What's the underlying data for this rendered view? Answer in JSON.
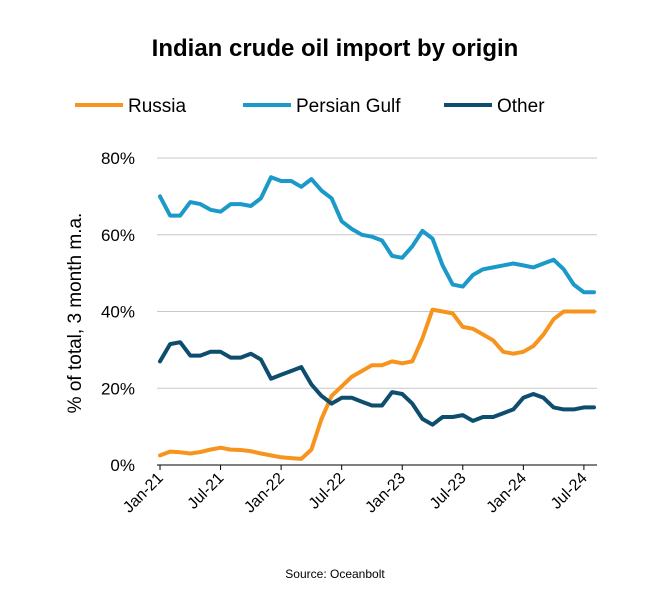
{
  "chart_data": {
    "type": "line",
    "title": "Indian crude oil import by origin",
    "ylabel": "% of total, 3 month m.a.",
    "xlabel": "",
    "ylim": [
      0,
      80
    ],
    "y_ticks": [
      "0%",
      "20%",
      "40%",
      "60%",
      "80%"
    ],
    "y_tick_values": [
      0,
      20,
      40,
      60,
      80
    ],
    "x_tick_labels": [
      "Jan-21",
      "Jul-21",
      "Jan-22",
      "Jul-22",
      "Jan-23",
      "Jul-23",
      "Jan-24",
      "Jul-24"
    ],
    "x_tick_dates": [
      "2021-01",
      "2021-07",
      "2022-01",
      "2022-07",
      "2023-01",
      "2023-07",
      "2024-01",
      "2024-07"
    ],
    "x": [
      "2021-01",
      "2021-02",
      "2021-03",
      "2021-04",
      "2021-05",
      "2021-06",
      "2021-07",
      "2021-08",
      "2021-09",
      "2021-10",
      "2021-11",
      "2021-12",
      "2022-01",
      "2022-02",
      "2022-03",
      "2022-04",
      "2022-05",
      "2022-06",
      "2022-07",
      "2022-08",
      "2022-09",
      "2022-10",
      "2022-11",
      "2022-12",
      "2023-01",
      "2023-02",
      "2023-03",
      "2023-04",
      "2023-05",
      "2023-06",
      "2023-07",
      "2023-08",
      "2023-09",
      "2023-10",
      "2023-11",
      "2023-12",
      "2024-01",
      "2024-02",
      "2024-03",
      "2024-04",
      "2024-05",
      "2024-06",
      "2024-07",
      "2024-08"
    ],
    "grid": true,
    "legend_position": "top",
    "series": [
      {
        "name": "Russia",
        "color": "#F7941D",
        "values": [
          2.5,
          3.5,
          3.3,
          3.0,
          3.4,
          4.0,
          4.5,
          4.0,
          3.9,
          3.6,
          3.0,
          2.5,
          2.0,
          1.8,
          1.6,
          4.0,
          12.0,
          18.0,
          20.5,
          23.0,
          24.5,
          26.0,
          26.0,
          27.0,
          26.5,
          27.0,
          33.0,
          40.5,
          40.0,
          39.5,
          36.0,
          35.5,
          34.0,
          32.5,
          29.5,
          29.0,
          29.5,
          31.0,
          34.0,
          38.0,
          40.0,
          40.0,
          40.0,
          40.0
        ]
      },
      {
        "name": "Persian Gulf",
        "color": "#1B9AC9",
        "values": [
          70.0,
          65.0,
          65.0,
          68.5,
          68.0,
          66.5,
          66.0,
          68.0,
          68.0,
          67.5,
          69.5,
          75.0,
          74.0,
          74.0,
          72.5,
          74.5,
          71.5,
          69.5,
          63.5,
          61.5,
          60.0,
          59.5,
          58.5,
          54.5,
          54.0,
          57.0,
          61.0,
          59.0,
          52.0,
          47.0,
          46.5,
          49.5,
          51.0,
          51.5,
          52.0,
          52.5,
          52.0,
          51.5,
          52.5,
          53.5,
          51.0,
          47.0,
          45.0,
          45.0
        ]
      },
      {
        "name": "Other",
        "color": "#0E4D6E",
        "values": [
          27.0,
          31.5,
          32.0,
          28.5,
          28.5,
          29.5,
          29.5,
          28.0,
          28.0,
          29.0,
          27.5,
          22.5,
          23.5,
          24.5,
          25.5,
          21.0,
          18.0,
          16.0,
          17.5,
          17.5,
          16.5,
          15.5,
          15.5,
          19.0,
          18.5,
          16.0,
          12.0,
          10.5,
          12.5,
          12.5,
          13.0,
          11.5,
          12.5,
          12.5,
          13.5,
          14.5,
          17.5,
          18.5,
          17.5,
          15.0,
          14.5,
          14.5,
          15.0,
          15.0
        ]
      }
    ],
    "source": "Source: Oceanbolt"
  }
}
